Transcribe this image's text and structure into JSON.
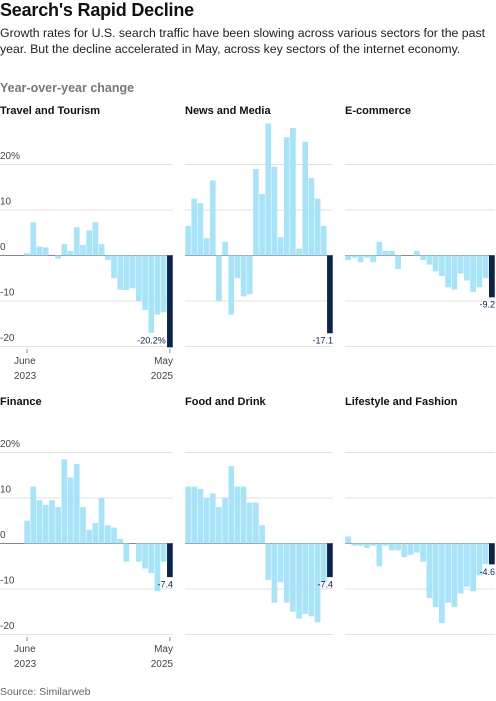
{
  "title": "Search's Rapid Decline",
  "subtitle": "Growth rates for U.S. search traffic have been slowing across various sectors for the past year. But the decline accelerated in May, across key sectors of the internet economy.",
  "y_label": "Year-over-year change",
  "source": "Source: Similarweb",
  "chart_data": [
    {
      "type": "bar",
      "title": "Travel and Tourism",
      "categories": [
        "June 2023",
        null,
        null,
        null,
        null,
        null,
        null,
        null,
        null,
        null,
        null,
        null,
        null,
        null,
        null,
        null,
        null,
        null,
        null,
        null,
        null,
        null,
        null,
        "May 2025"
      ],
      "values": [
        0.5,
        7.3,
        2,
        1.8,
        0,
        -0.7,
        2.5,
        1,
        6.2,
        2.3,
        5.5,
        7.3,
        2.5,
        -1,
        -5,
        -7.5,
        -7.6,
        -7.2,
        -10,
        -12,
        -17,
        -13,
        -12.5,
        -20.2
      ],
      "value_labels": [
        null,
        null,
        null,
        null,
        null,
        null,
        null,
        null,
        null,
        null,
        null,
        null,
        null,
        null,
        null,
        null,
        null,
        null,
        null,
        null,
        null,
        null,
        null,
        "-20.2%"
      ],
      "color": "#a8e3f8",
      "highlight_color": "#0b2447",
      "ylim": [
        -21,
        30
      ],
      "yticks": [
        {
          "value": 20,
          "label": "20%"
        },
        10,
        0,
        -10,
        -20
      ]
    },
    {
      "type": "bar",
      "title": "News and Media",
      "values": [
        6.5,
        12.5,
        11.5,
        3.8,
        16.5,
        -10,
        3,
        -13,
        -5,
        -9,
        -8.5,
        19,
        13.5,
        29,
        19.5,
        4,
        26,
        28,
        1.5,
        25,
        17,
        12.5,
        6.5,
        -17.1
      ],
      "value_labels": [
        null,
        null,
        null,
        null,
        null,
        null,
        null,
        null,
        null,
        null,
        null,
        null,
        null,
        null,
        null,
        null,
        null,
        null,
        null,
        null,
        null,
        null,
        null,
        "-17.1"
      ],
      "color": "#a8e3f8",
      "highlight_color": "#0b2447",
      "ylim": [
        -21,
        30
      ],
      "yticks": [
        20,
        10,
        0,
        -10,
        -20
      ]
    },
    {
      "type": "bar",
      "title": "E-commerce",
      "values": [
        -1,
        -0.5,
        -1.5,
        -0.5,
        -1.5,
        3,
        1,
        1,
        -3,
        0,
        0,
        1,
        -1,
        -2,
        -3.5,
        -4.5,
        -7,
        -7.5,
        -4,
        -5.5,
        -8,
        -7,
        -5,
        -9.2
      ],
      "value_labels": [
        null,
        null,
        null,
        null,
        null,
        null,
        null,
        null,
        null,
        null,
        null,
        null,
        null,
        null,
        null,
        null,
        null,
        null,
        null,
        null,
        null,
        null,
        null,
        "-9.2"
      ],
      "color": "#a8e3f8",
      "highlight_color": "#0b2447",
      "ylim": [
        -21,
        30
      ],
      "yticks": [
        20,
        10,
        0,
        -10,
        -20
      ]
    },
    {
      "type": "bar",
      "title": "Finance",
      "categories": [
        "June 2023",
        null,
        null,
        null,
        null,
        null,
        null,
        null,
        null,
        null,
        null,
        null,
        null,
        null,
        null,
        null,
        null,
        null,
        null,
        null,
        null,
        null,
        null,
        "May 2025"
      ],
      "values": [
        5,
        12.5,
        9.5,
        8.5,
        9.5,
        8,
        18.5,
        14.5,
        17.5,
        8,
        3,
        4.5,
        10,
        4,
        3.5,
        1,
        -4,
        0,
        -4,
        -5.5,
        -6.5,
        -10.5,
        -4,
        -7.4
      ],
      "value_labels": [
        null,
        null,
        null,
        null,
        null,
        null,
        null,
        null,
        null,
        null,
        null,
        null,
        null,
        null,
        null,
        null,
        null,
        null,
        null,
        null,
        null,
        null,
        null,
        "-7.4"
      ],
      "color": "#a8e3f8",
      "highlight_color": "#0b2447",
      "ylim": [
        -21,
        30
      ],
      "yticks": [
        {
          "value": 20,
          "label": "20%"
        },
        10,
        0,
        -10,
        -20
      ]
    },
    {
      "type": "bar",
      "title": "Food and Drink",
      "values": [
        12.5,
        12.5,
        12,
        10,
        11,
        8,
        10,
        17,
        12.5,
        12.5,
        9,
        9,
        4,
        -8,
        -13,
        -8.5,
        -13,
        -15,
        -16.5,
        -15.5,
        -16,
        -17.3,
        -8.5,
        -7.4
      ],
      "value_labels": [
        null,
        null,
        null,
        null,
        null,
        null,
        null,
        null,
        null,
        null,
        null,
        null,
        null,
        null,
        null,
        null,
        null,
        null,
        null,
        null,
        null,
        null,
        null,
        "-7.4"
      ],
      "color": "#a8e3f8",
      "highlight_color": "#0b2447",
      "ylim": [
        -21,
        30
      ],
      "yticks": [
        20,
        10,
        0,
        -10,
        -20
      ]
    },
    {
      "type": "bar",
      "title": "Lifestyle and Fashion",
      "values": [
        1.5,
        -0.5,
        -0.5,
        -1,
        -0.5,
        -5,
        -0.5,
        -1.5,
        -1.5,
        -3,
        -2.5,
        -2,
        -4,
        -12,
        -14,
        -17.5,
        -13,
        -14,
        -11,
        -9.5,
        -10.5,
        -7,
        -4.5,
        -4.6
      ],
      "value_labels": [
        null,
        null,
        null,
        null,
        null,
        null,
        null,
        null,
        null,
        null,
        null,
        null,
        null,
        null,
        null,
        null,
        null,
        null,
        null,
        null,
        null,
        null,
        null,
        "-4.6"
      ],
      "color": "#a8e3f8",
      "highlight_color": "#0b2447",
      "ylim": [
        -21,
        30
      ],
      "yticks": [
        20,
        10,
        0,
        -10,
        -20
      ]
    }
  ]
}
